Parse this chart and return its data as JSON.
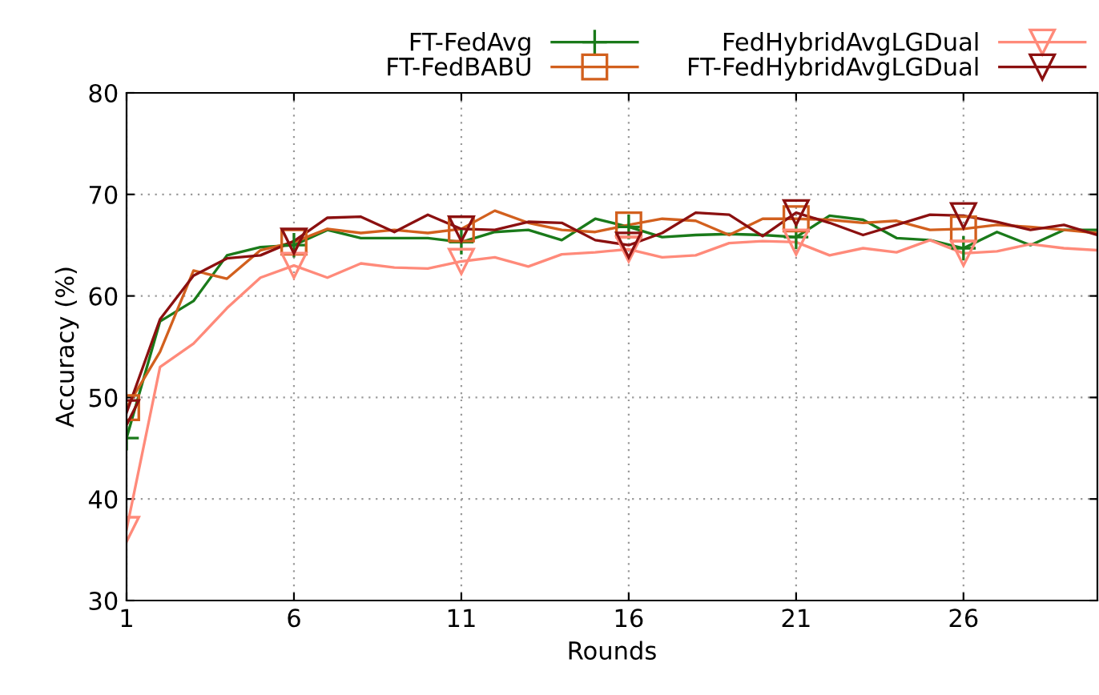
{
  "chart_data": {
    "type": "line",
    "xlabel": "Rounds",
    "ylabel": "Accuracy (%)",
    "xlim": [
      1,
      30
    ],
    "ylim": [
      30,
      80
    ],
    "xticks": [
      1,
      6,
      11,
      16,
      21,
      26
    ],
    "yticks": [
      30,
      40,
      50,
      60,
      70,
      80
    ],
    "grid": true,
    "legend": "top right",
    "line_style": "solid",
    "x": [
      1,
      2,
      3,
      4,
      5,
      6,
      7,
      8,
      9,
      10,
      11,
      12,
      13,
      14,
      15,
      16,
      17,
      18,
      19,
      20,
      21,
      22,
      23,
      24,
      25,
      26,
      27,
      28,
      29,
      30
    ],
    "series": [
      {
        "name": "FT-FedAvg",
        "color": "#1a7a1a",
        "values": [
          46,
          57.5,
          59.5,
          64,
          64.8,
          65,
          66.5,
          65.7,
          65.7,
          65.7,
          65.3,
          66.3,
          66.5,
          65.5,
          67.6,
          66.8,
          65.8,
          66,
          66.1,
          66,
          65.8,
          67.9,
          67.5,
          65.7,
          65.5,
          64.7,
          66.3,
          65,
          66.5,
          66.5
        ]
      },
      {
        "name": "FT-FedBABU",
        "color": "#d2601e",
        "values": [
          49,
          54.5,
          62.5,
          61.7,
          64.5,
          65.3,
          66.6,
          66.2,
          66.5,
          66.2,
          66.6,
          68.4,
          67.2,
          66.5,
          66.3,
          67,
          67.6,
          67.4,
          66,
          67.6,
          67.6,
          67.5,
          67.2,
          67.4,
          66.5,
          66.6,
          67,
          66.8,
          66.5,
          66.2
        ]
      },
      {
        "name": "FedHybridAvgLGDual",
        "color": "#ff8a7a",
        "values": [
          37,
          53,
          55.3,
          58.8,
          61.8,
          63,
          61.8,
          63.2,
          62.8,
          62.7,
          63.4,
          63.8,
          62.9,
          64.1,
          64.3,
          64.6,
          63.8,
          64,
          65.2,
          65.4,
          65.3,
          64,
          64.7,
          64.3,
          65.5,
          64.2,
          64.4,
          65.1,
          64.7,
          64.5
        ]
      },
      {
        "name": "FT-FedHybridAvgLGDual",
        "color": "#8b1010",
        "values": [
          48.5,
          57.7,
          62,
          63.7,
          64,
          65.4,
          67.7,
          67.8,
          66.3,
          68,
          66.6,
          66.5,
          67.3,
          67.2,
          65.5,
          65,
          66.2,
          68.2,
          68,
          65.9,
          68.2,
          67.2,
          66,
          67,
          68,
          67.9,
          67.3,
          66.5,
          67,
          66
        ]
      },
      {
        "type": "scatter",
        "color": "#1a7a1a",
        "marker": "cross",
        "x": [
          1,
          6,
          11,
          16,
          21,
          26
        ],
        "values": [
          46,
          65,
          65.3,
          66.8,
          65.8,
          64.7
        ]
      },
      {
        "type": "scatter",
        "color": "#d2601e",
        "marker": "square",
        "x": [
          1,
          6,
          11,
          16,
          21,
          26
        ],
        "values": [
          49,
          65.3,
          66.6,
          67,
          67.6,
          66.6
        ]
      },
      {
        "type": "scatter",
        "color": "#ff8a7a",
        "marker": "triangle",
        "x": [
          1,
          6,
          11,
          16,
          21,
          26
        ],
        "values": [
          37,
          63,
          63.4,
          64.6,
          65.3,
          64.2
        ]
      },
      {
        "type": "scatter",
        "color": "#8b1010",
        "marker": "triangle",
        "x": [
          1,
          6,
          11,
          16,
          21,
          26
        ],
        "values": [
          48.5,
          65.4,
          66.6,
          65,
          68.2,
          67.9
        ]
      }
    ]
  }
}
